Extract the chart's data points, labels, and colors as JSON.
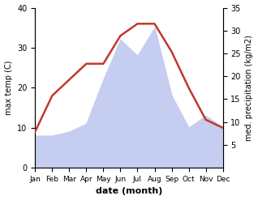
{
  "months": [
    "Jan",
    "Feb",
    "Mar",
    "Apr",
    "May",
    "Jun",
    "Jul",
    "Aug",
    "Sep",
    "Oct",
    "Nov",
    "Dec"
  ],
  "temperature": [
    9,
    18,
    22,
    26,
    26,
    33,
    36,
    36,
    29,
    20,
    12,
    10
  ],
  "precipitation": [
    8,
    8,
    9,
    11,
    22,
    32,
    28,
    35,
    18,
    10,
    13,
    10
  ],
  "temp_color": "#c0392b",
  "precip_color": "#c5cdf0",
  "title": "",
  "xlabel": "date (month)",
  "ylabel_left": "max temp (C)",
  "ylabel_right": "med. precipitation (kg/m2)",
  "ylim_left": [
    0,
    40
  ],
  "ylim_right": [
    0,
    35
  ],
  "yticks_left": [
    0,
    10,
    20,
    30,
    40
  ],
  "yticks_right": [
    5,
    10,
    15,
    20,
    25,
    30,
    35
  ],
  "temp_linewidth": 1.8,
  "figsize": [
    3.18,
    2.47
  ],
  "dpi": 100
}
